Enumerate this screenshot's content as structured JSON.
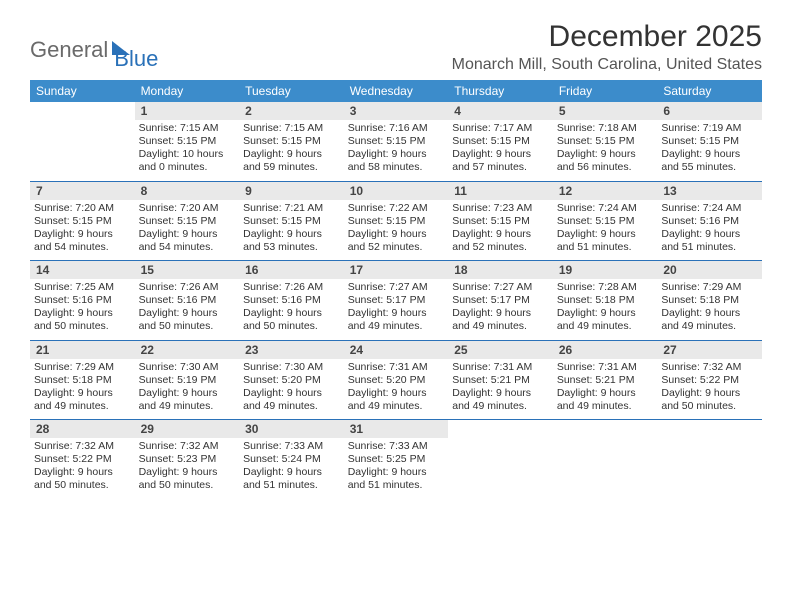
{
  "brand": {
    "part1": "General",
    "part2": "Blue"
  },
  "title": "December 2025",
  "location": "Monarch Mill, South Carolina, United States",
  "colors": {
    "header_bg": "#3c8ccb",
    "header_text": "#ffffff",
    "daynum_bg": "#e9e9e9",
    "border": "#2a71b8",
    "brand_gray": "#6a6a6a",
    "brand_blue": "#2a71b8"
  },
  "day_headers": [
    "Sunday",
    "Monday",
    "Tuesday",
    "Wednesday",
    "Thursday",
    "Friday",
    "Saturday"
  ],
  "weeks": [
    [
      null,
      {
        "n": "1",
        "sr": "7:15 AM",
        "ss": "5:15 PM",
        "dl": "10 hours and 0 minutes."
      },
      {
        "n": "2",
        "sr": "7:15 AM",
        "ss": "5:15 PM",
        "dl": "9 hours and 59 minutes."
      },
      {
        "n": "3",
        "sr": "7:16 AM",
        "ss": "5:15 PM",
        "dl": "9 hours and 58 minutes."
      },
      {
        "n": "4",
        "sr": "7:17 AM",
        "ss": "5:15 PM",
        "dl": "9 hours and 57 minutes."
      },
      {
        "n": "5",
        "sr": "7:18 AM",
        "ss": "5:15 PM",
        "dl": "9 hours and 56 minutes."
      },
      {
        "n": "6",
        "sr": "7:19 AM",
        "ss": "5:15 PM",
        "dl": "9 hours and 55 minutes."
      }
    ],
    [
      {
        "n": "7",
        "sr": "7:20 AM",
        "ss": "5:15 PM",
        "dl": "9 hours and 54 minutes."
      },
      {
        "n": "8",
        "sr": "7:20 AM",
        "ss": "5:15 PM",
        "dl": "9 hours and 54 minutes."
      },
      {
        "n": "9",
        "sr": "7:21 AM",
        "ss": "5:15 PM",
        "dl": "9 hours and 53 minutes."
      },
      {
        "n": "10",
        "sr": "7:22 AM",
        "ss": "5:15 PM",
        "dl": "9 hours and 52 minutes."
      },
      {
        "n": "11",
        "sr": "7:23 AM",
        "ss": "5:15 PM",
        "dl": "9 hours and 52 minutes."
      },
      {
        "n": "12",
        "sr": "7:24 AM",
        "ss": "5:15 PM",
        "dl": "9 hours and 51 minutes."
      },
      {
        "n": "13",
        "sr": "7:24 AM",
        "ss": "5:16 PM",
        "dl": "9 hours and 51 minutes."
      }
    ],
    [
      {
        "n": "14",
        "sr": "7:25 AM",
        "ss": "5:16 PM",
        "dl": "9 hours and 50 minutes."
      },
      {
        "n": "15",
        "sr": "7:26 AM",
        "ss": "5:16 PM",
        "dl": "9 hours and 50 minutes."
      },
      {
        "n": "16",
        "sr": "7:26 AM",
        "ss": "5:16 PM",
        "dl": "9 hours and 50 minutes."
      },
      {
        "n": "17",
        "sr": "7:27 AM",
        "ss": "5:17 PM",
        "dl": "9 hours and 49 minutes."
      },
      {
        "n": "18",
        "sr": "7:27 AM",
        "ss": "5:17 PM",
        "dl": "9 hours and 49 minutes."
      },
      {
        "n": "19",
        "sr": "7:28 AM",
        "ss": "5:18 PM",
        "dl": "9 hours and 49 minutes."
      },
      {
        "n": "20",
        "sr": "7:29 AM",
        "ss": "5:18 PM",
        "dl": "9 hours and 49 minutes."
      }
    ],
    [
      {
        "n": "21",
        "sr": "7:29 AM",
        "ss": "5:18 PM",
        "dl": "9 hours and 49 minutes."
      },
      {
        "n": "22",
        "sr": "7:30 AM",
        "ss": "5:19 PM",
        "dl": "9 hours and 49 minutes."
      },
      {
        "n": "23",
        "sr": "7:30 AM",
        "ss": "5:20 PM",
        "dl": "9 hours and 49 minutes."
      },
      {
        "n": "24",
        "sr": "7:31 AM",
        "ss": "5:20 PM",
        "dl": "9 hours and 49 minutes."
      },
      {
        "n": "25",
        "sr": "7:31 AM",
        "ss": "5:21 PM",
        "dl": "9 hours and 49 minutes."
      },
      {
        "n": "26",
        "sr": "7:31 AM",
        "ss": "5:21 PM",
        "dl": "9 hours and 49 minutes."
      },
      {
        "n": "27",
        "sr": "7:32 AM",
        "ss": "5:22 PM",
        "dl": "9 hours and 50 minutes."
      }
    ],
    [
      {
        "n": "28",
        "sr": "7:32 AM",
        "ss": "5:22 PM",
        "dl": "9 hours and 50 minutes."
      },
      {
        "n": "29",
        "sr": "7:32 AM",
        "ss": "5:23 PM",
        "dl": "9 hours and 50 minutes."
      },
      {
        "n": "30",
        "sr": "7:33 AM",
        "ss": "5:24 PM",
        "dl": "9 hours and 51 minutes."
      },
      {
        "n": "31",
        "sr": "7:33 AM",
        "ss": "5:25 PM",
        "dl": "9 hours and 51 minutes."
      },
      null,
      null,
      null
    ]
  ],
  "labels": {
    "sunrise": "Sunrise:",
    "sunset": "Sunset:",
    "daylight": "Daylight:"
  }
}
